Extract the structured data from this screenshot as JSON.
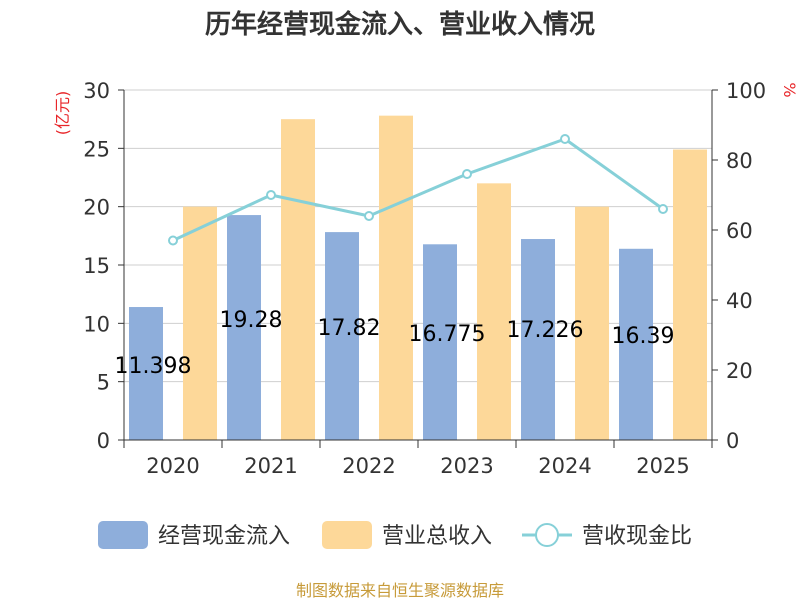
{
  "chart_data": {
    "type": "bar",
    "title": "历年经营现金流入、营业收入情况",
    "categories": [
      "2020",
      "2021",
      "2022",
      "2023",
      "2024",
      "2025"
    ],
    "series": [
      {
        "name": "经营现金流入",
        "type": "bar",
        "axis": "left",
        "color": "#8eaedb",
        "values": [
          11.398,
          19.28,
          17.82,
          16.775,
          17.226,
          16.39
        ],
        "labels": [
          "11.398",
          "19.28",
          "17.82",
          "16.775",
          "17.226",
          "16.39"
        ]
      },
      {
        "name": "营业总收入",
        "type": "bar",
        "axis": "left",
        "color": "#fdd899",
        "values": [
          20.0,
          27.5,
          27.8,
          22.0,
          20.0,
          24.9
        ]
      },
      {
        "name": "营收现金比",
        "type": "line",
        "axis": "right",
        "color": "#86d0d8",
        "values": [
          57,
          70,
          64,
          76,
          86,
          66
        ]
      }
    ],
    "y_left": {
      "label": "(亿元)",
      "label_color": "#e8262a",
      "min": 0,
      "max": 30,
      "ticks": [
        "0",
        "5",
        "10",
        "15",
        "20",
        "25",
        "30"
      ]
    },
    "y_right": {
      "label": "%",
      "label_color": "#e8262a",
      "min": 0,
      "max": 100,
      "ticks": [
        "0",
        "20",
        "40",
        "60",
        "80",
        "100"
      ]
    },
    "grid": true,
    "legend_position": "bottom"
  },
  "source": {
    "text": "制图数据来自恒生聚源数据库",
    "color": "#c79b3a"
  }
}
